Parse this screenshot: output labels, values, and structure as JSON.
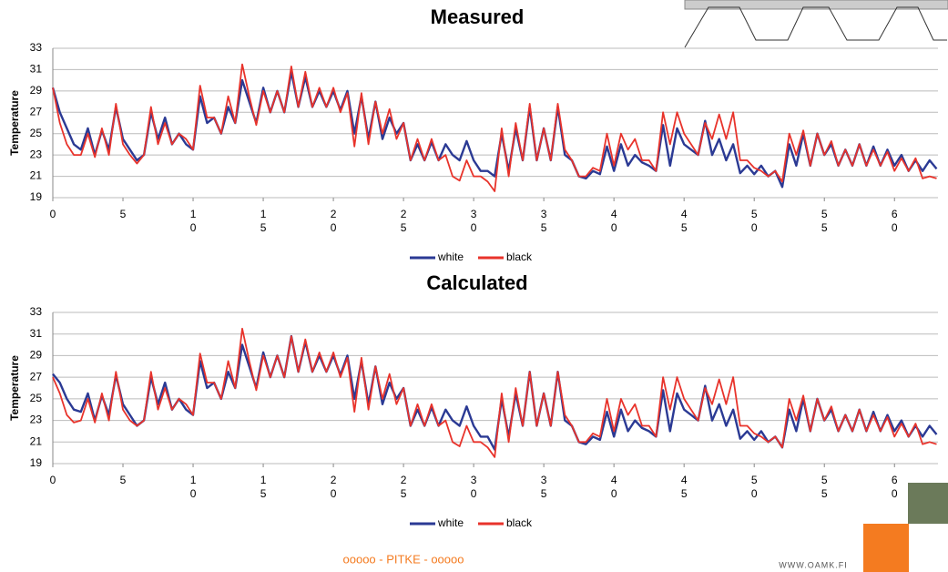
{
  "chart_data": [
    {
      "type": "line",
      "title": "Measured",
      "y_label": "Temperature",
      "grid": true,
      "xlim": [
        0,
        63.1
      ],
      "ylim": [
        19,
        33
      ],
      "xticks": [
        0,
        5,
        10,
        15,
        20,
        25,
        30,
        35,
        40,
        45,
        50,
        55,
        60
      ],
      "yticks": [
        19,
        21,
        23,
        25,
        27,
        29,
        31,
        33
      ],
      "x": [
        0,
        0.5,
        1,
        1.5,
        2,
        2.5,
        3,
        3.5,
        4,
        4.5,
        5,
        5.5,
        6,
        6.5,
        7,
        7.5,
        8,
        8.5,
        9,
        9.5,
        10,
        10.5,
        11,
        11.5,
        12,
        12.5,
        13,
        13.5,
        14,
        14.5,
        15,
        15.5,
        16,
        16.5,
        17,
        17.5,
        18,
        18.5,
        19,
        19.5,
        20,
        20.5,
        21,
        21.5,
        22,
        22.5,
        23,
        23.5,
        24,
        24.5,
        25,
        25.5,
        26,
        26.5,
        27,
        27.5,
        28,
        28.5,
        29,
        29.5,
        30,
        30.5,
        31,
        31.5,
        32,
        32.5,
        33,
        33.5,
        34,
        34.5,
        35,
        35.5,
        36,
        36.5,
        37,
        37.5,
        38,
        38.5,
        39,
        39.5,
        40,
        40.5,
        41,
        41.5,
        42,
        42.5,
        43,
        43.5,
        44,
        44.5,
        45,
        45.5,
        46,
        46.5,
        47,
        47.5,
        48,
        48.5,
        49,
        49.5,
        50,
        50.5,
        51,
        51.5,
        52,
        52.5,
        53,
        53.5,
        54,
        54.5,
        55,
        55.5,
        56,
        56.5,
        57,
        57.5,
        58,
        58.5,
        59,
        59.5,
        60,
        60.5,
        61,
        61.5,
        62,
        62.5,
        63
      ],
      "series": [
        {
          "name": "white",
          "color": "#2b3a94",
          "values": [
            29.3,
            27,
            25.5,
            24,
            23.5,
            25.5,
            23,
            25.3,
            23.5,
            27.5,
            24.5,
            23.5,
            22.5,
            23,
            27,
            24.5,
            26.5,
            24,
            25,
            24,
            23.5,
            28.5,
            26,
            26.5,
            25,
            27.5,
            26,
            30,
            28,
            26,
            29.3,
            27,
            29,
            27,
            30.8,
            27.5,
            30.3,
            27.5,
            29,
            27.5,
            29,
            27.2,
            29,
            25,
            28.5,
            24.5,
            28,
            24.5,
            26.5,
            25,
            26,
            22.5,
            24,
            22.5,
            24.2,
            22.5,
            24,
            23,
            22.5,
            24.3,
            22.5,
            21.5,
            21.5,
            21,
            25,
            21.5,
            25.5,
            22.5,
            27.5,
            22.5,
            25.5,
            22.5,
            27.5,
            23,
            22.5,
            21,
            20.8,
            21.5,
            21.2,
            23.8,
            21.5,
            24,
            22,
            23,
            22.3,
            22,
            21.5,
            25.8,
            22,
            25.5,
            24,
            23.5,
            23,
            26.2,
            23,
            24.5,
            22.5,
            24,
            21.3,
            22,
            21.2,
            22,
            21,
            21.5,
            20,
            24,
            22,
            25,
            22,
            25,
            23,
            24,
            22,
            23.5,
            22,
            24,
            22,
            23.8,
            22,
            23.5,
            22,
            23,
            21.5,
            22.5,
            21.5,
            22.5,
            21.7
          ]
        },
        {
          "name": "black",
          "color": "#e8332b",
          "values": [
            29.3,
            26,
            24,
            23,
            23,
            25,
            22.8,
            25.5,
            23,
            27.8,
            24,
            23,
            22.2,
            23,
            27.5,
            24,
            26,
            24,
            25,
            24.5,
            23.5,
            29.5,
            26.5,
            26.5,
            25,
            28.5,
            26,
            31.5,
            28.5,
            25.8,
            29,
            27,
            29,
            27,
            31.3,
            27.5,
            30.8,
            27.5,
            29.3,
            27.5,
            29.3,
            27,
            28.8,
            23.8,
            28.8,
            24,
            28,
            25,
            27.3,
            24.5,
            26,
            22.5,
            24.5,
            22.5,
            24.5,
            22.5,
            23,
            21,
            20.6,
            22.5,
            21,
            21,
            20.5,
            19.6,
            25.5,
            21,
            26,
            22.5,
            27.8,
            22.5,
            25.5,
            22.5,
            27.8,
            23.5,
            22.5,
            21,
            21,
            21.8,
            21.5,
            25,
            22,
            25,
            23.5,
            24.5,
            22.5,
            22.5,
            21.5,
            27,
            24,
            27,
            25,
            24,
            23,
            26,
            24.5,
            26.8,
            24.5,
            27,
            22.5,
            22.5,
            21.8,
            21.5,
            21,
            21.5,
            20.5,
            25,
            23,
            25.3,
            22,
            25,
            23,
            24.3,
            22,
            23.5,
            22,
            24,
            22,
            23.5,
            22,
            23.3,
            21.5,
            22.7,
            21.5,
            22.7,
            20.8,
            21,
            20.8
          ]
        }
      ]
    },
    {
      "type": "line",
      "title": "Calculated",
      "y_label": "Temperature",
      "grid": true,
      "xlim": [
        0,
        63.1
      ],
      "ylim": [
        19,
        33
      ],
      "xticks": [
        0,
        5,
        10,
        15,
        20,
        25,
        30,
        35,
        40,
        45,
        50,
        55,
        60
      ],
      "yticks": [
        19,
        21,
        23,
        25,
        27,
        29,
        31,
        33
      ],
      "x": [
        0,
        0.5,
        1,
        1.5,
        2,
        2.5,
        3,
        3.5,
        4,
        4.5,
        5,
        5.5,
        6,
        6.5,
        7,
        7.5,
        8,
        8.5,
        9,
        9.5,
        10,
        10.5,
        11,
        11.5,
        12,
        12.5,
        13,
        13.5,
        14,
        14.5,
        15,
        15.5,
        16,
        16.5,
        17,
        17.5,
        18,
        18.5,
        19,
        19.5,
        20,
        20.5,
        21,
        21.5,
        22,
        22.5,
        23,
        23.5,
        24,
        24.5,
        25,
        25.5,
        26,
        26.5,
        27,
        27.5,
        28,
        28.5,
        29,
        29.5,
        30,
        30.5,
        31,
        31.5,
        32,
        32.5,
        33,
        33.5,
        34,
        34.5,
        35,
        35.5,
        36,
        36.5,
        37,
        37.5,
        38,
        38.5,
        39,
        39.5,
        40,
        40.5,
        41,
        41.5,
        42,
        42.5,
        43,
        43.5,
        44,
        44.5,
        45,
        45.5,
        46,
        46.5,
        47,
        47.5,
        48,
        48.5,
        49,
        49.5,
        50,
        50.5,
        51,
        51.5,
        52,
        52.5,
        53,
        53.5,
        54,
        54.5,
        55,
        55.5,
        56,
        56.5,
        57,
        57.5,
        58,
        58.5,
        59,
        59.5,
        60,
        60.5,
        61,
        61.5,
        62,
        62.5,
        63
      ],
      "series": [
        {
          "name": "white",
          "color": "#2b3a94",
          "values": [
            27.3,
            26.5,
            25,
            24,
            23.8,
            25.5,
            23,
            25.3,
            23.5,
            27.2,
            24.5,
            23.5,
            22.5,
            23,
            27,
            24.5,
            26.5,
            24,
            25,
            24,
            23.5,
            28.5,
            26,
            26.5,
            25,
            27.5,
            26,
            30,
            28,
            26,
            29.3,
            27,
            29,
            27,
            30.8,
            27.5,
            30.3,
            27.5,
            29,
            27.5,
            29,
            27.2,
            29,
            25,
            28.5,
            24.5,
            28,
            24.5,
            26.5,
            25,
            26,
            22.5,
            24,
            22.5,
            24.2,
            22.5,
            24,
            23,
            22.5,
            24.3,
            22.5,
            21.5,
            21.5,
            20.3,
            25,
            21.5,
            25.5,
            22.5,
            27.5,
            22.5,
            25.5,
            22.5,
            27.5,
            23,
            22.5,
            21,
            20.8,
            21.5,
            21.2,
            23.8,
            21.5,
            24,
            22,
            23,
            22.3,
            22,
            21.5,
            25.8,
            22,
            25.5,
            24,
            23.5,
            23,
            26.2,
            23,
            24.5,
            22.5,
            24,
            21.3,
            22,
            21.2,
            22,
            21,
            21.5,
            20.5,
            24,
            22,
            25,
            22,
            25,
            23,
            24,
            22,
            23.5,
            22,
            24,
            22,
            23.8,
            22,
            23.5,
            22,
            23,
            21.5,
            22.5,
            21.5,
            22.5,
            21.7
          ]
        },
        {
          "name": "black",
          "color": "#e8332b",
          "values": [
            27,
            25.5,
            23.5,
            22.8,
            23,
            25,
            22.8,
            25.5,
            23,
            27.5,
            24,
            23,
            22.5,
            23,
            27.5,
            24,
            26,
            24,
            25,
            24.5,
            23.5,
            29.2,
            26.5,
            26.5,
            25,
            28.5,
            26,
            31.5,
            28.5,
            25.8,
            29,
            27,
            29,
            27,
            30.8,
            27.5,
            30.5,
            27.5,
            29.3,
            27.5,
            29.3,
            27,
            28.8,
            23.8,
            28.8,
            24,
            28,
            25,
            27.3,
            24.5,
            26,
            22.5,
            24.5,
            22.5,
            24.5,
            22.5,
            23,
            21,
            20.6,
            22.5,
            21,
            21,
            20.5,
            19.6,
            25.5,
            21,
            26,
            22.5,
            27.5,
            22.5,
            25.5,
            22.5,
            27.5,
            23.5,
            22.5,
            21,
            21,
            21.8,
            21.5,
            25,
            22,
            25,
            23.5,
            24.5,
            22.5,
            22.5,
            21.5,
            27,
            24,
            27,
            25,
            24,
            23,
            26,
            24.5,
            26.8,
            24.5,
            27,
            22.5,
            22.5,
            21.8,
            21.5,
            21,
            21.5,
            20.5,
            25,
            23,
            25.3,
            22,
            25,
            23,
            24.3,
            22,
            23.5,
            22,
            24,
            22,
            23.5,
            22,
            23.3,
            21.5,
            22.7,
            21.5,
            22.7,
            20.8,
            21,
            20.8
          ]
        }
      ]
    }
  ],
  "footer": {
    "text": "ooooo - PITKE - ooooo",
    "url": "WWW.OAMK.FI"
  }
}
